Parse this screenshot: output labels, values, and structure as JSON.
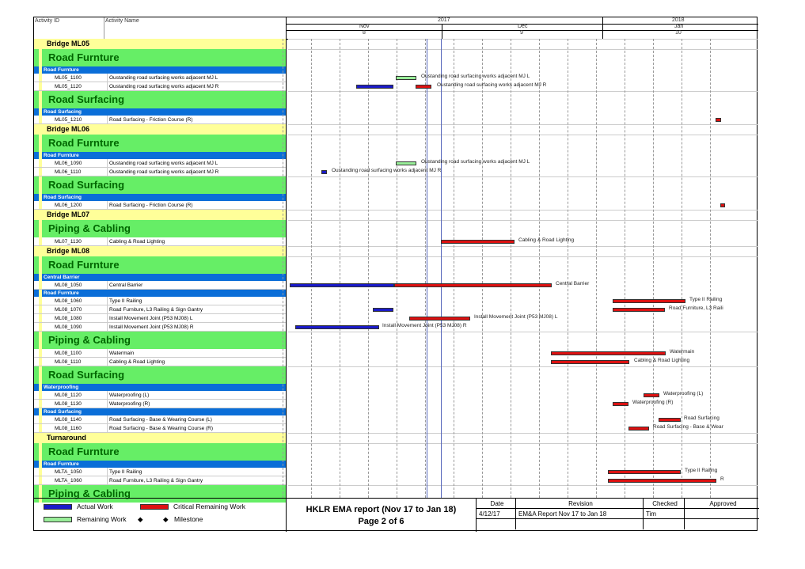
{
  "header": {
    "activity_id": "Activity ID",
    "activity_name": "Activity Name",
    "year_2017": "2017",
    "year_2018": "2018",
    "months": [
      "Nov",
      "Dec",
      "Jan"
    ],
    "month_nums": [
      "8",
      "9",
      "10"
    ]
  },
  "rows": [
    {
      "kind": "bridge",
      "label": "Bridge ML05"
    },
    {
      "kind": "cat",
      "label": "Road Furnture"
    },
    {
      "kind": "sub",
      "label": "Road Furnture"
    },
    {
      "kind": "act",
      "id": "ML05_1100",
      "name": "Oustanding road surfacing works adjacent MJ L"
    },
    {
      "kind": "act",
      "id": "ML05_1120",
      "name": "Oustanding road surfacing works adjacent MJ R"
    },
    {
      "kind": "cat",
      "label": "Road Surfacing"
    },
    {
      "kind": "sub",
      "label": "Road Surfacing"
    },
    {
      "kind": "act",
      "id": "ML05_1210",
      "name": "Road Surfacing - Friction Course (R)"
    },
    {
      "kind": "bridge",
      "label": "Bridge ML06"
    },
    {
      "kind": "cat",
      "label": "Road Furnture"
    },
    {
      "kind": "sub",
      "label": "Road Furnture"
    },
    {
      "kind": "act",
      "id": "ML06_1090",
      "name": "Oustanding road surfacing works adjacent MJ L"
    },
    {
      "kind": "act",
      "id": "ML06_1110",
      "name": "Oustanding road surfacing works adjacent MJ R"
    },
    {
      "kind": "cat",
      "label": "Road Surfacing"
    },
    {
      "kind": "sub",
      "label": "Road Surfacing"
    },
    {
      "kind": "act",
      "id": "ML06_1200",
      "name": "Road Surfacing - Friction Course (R)"
    },
    {
      "kind": "bridge",
      "label": "Bridge ML07"
    },
    {
      "kind": "cat",
      "label": "Piping & Cabling"
    },
    {
      "kind": "act",
      "id": "ML07_1130",
      "name": "Cabling & Road Lighting"
    },
    {
      "kind": "bridge",
      "label": "Bridge ML08"
    },
    {
      "kind": "cat",
      "label": "Road Furnture"
    },
    {
      "kind": "sub",
      "label": "Central Barrier"
    },
    {
      "kind": "act",
      "id": "ML08_1050",
      "name": "Central Barrier"
    },
    {
      "kind": "sub",
      "label": "Road Furnture"
    },
    {
      "kind": "act",
      "id": "ML08_1060",
      "name": "Type II Railing"
    },
    {
      "kind": "act",
      "id": "ML08_1070",
      "name": "Road Furniture, L3 Railing & Sign Gantry"
    },
    {
      "kind": "act",
      "id": "ML08_1080",
      "name": "Install Movement Joint (P53 MJ08) L"
    },
    {
      "kind": "act",
      "id": "ML08_1090",
      "name": "Install Movement Joint (P53 MJ08) R"
    },
    {
      "kind": "cat",
      "label": "Piping & Cabling"
    },
    {
      "kind": "act",
      "id": "ML08_1100",
      "name": "Watermain"
    },
    {
      "kind": "act",
      "id": "ML08_1110",
      "name": "Cabling & Road Lighting"
    },
    {
      "kind": "cat",
      "label": "Road Surfacing"
    },
    {
      "kind": "sub",
      "label": "Waterproofing"
    },
    {
      "kind": "act",
      "id": "ML08_1120",
      "name": "Waterproofing (L)"
    },
    {
      "kind": "act",
      "id": "ML08_1130",
      "name": "Waterproofing (R)"
    },
    {
      "kind": "sub",
      "label": "Road Surfacing"
    },
    {
      "kind": "act",
      "id": "ML08_1140",
      "name": "Road Surfacing - Base & Wearing Course (L)"
    },
    {
      "kind": "act",
      "id": "ML08_1160",
      "name": "Road Surfacing - Base & Wearing Course (R)"
    },
    {
      "kind": "bridge",
      "label": "Turnaround"
    },
    {
      "kind": "cat",
      "label": "Road Furnture"
    },
    {
      "kind": "sub",
      "label": "Road Furnture"
    },
    {
      "kind": "act",
      "id": "MLTA_1050",
      "name": "Type II Railing"
    },
    {
      "kind": "act",
      "id": "MLTA_1060",
      "name": "Road Furniture, L3 Railing & Sign Gantry"
    },
    {
      "kind": "cat",
      "label": "Piping & Cabling"
    }
  ],
  "bar_labels": {
    "ML05_1100": "Oustanding road surfacing works adjacent MJ L",
    "ML05_1120": "Oustanding road surfacing works adjacent MJ R",
    "ML06_1090": "Oustanding road surfacing works adjacent MJ L",
    "ML06_1110": "Oustanding road surfacing works adjacent MJ R",
    "ML07_1130": "Cabling & Road Lighting",
    "ML08_1050": "Central Barrier",
    "ML08_1060": "Type II Railing",
    "ML08_1070": "Road Furniture, L3 Raili",
    "ML08_1080": "Install Movement Joint (P53 MJ08) L",
    "ML08_1090": "Install Movement Joint (P53 MJ08) R",
    "ML08_1100": "Watermain",
    "ML08_1110": "Cabling & Road Lighting",
    "ML08_1120": "Waterproofing (L)",
    "ML08_1130": "Waterproofing (R)",
    "ML08_1140": "Road Surfacing",
    "ML08_1160": "Road Surfacing - Base & Wear",
    "MLTA_1050": "Type II Railing",
    "MLTA_1060": "R"
  },
  "legend": {
    "actual": "Actual Work",
    "critical": "Critical Remaining Work",
    "remaining": "Remaining Work",
    "milestone": "Milestone",
    "diamond": "◆"
  },
  "title": {
    "line1": "HKLR EMA report (Nov 17 to Jan 18)",
    "line2": "Page 2 of 6"
  },
  "revision": {
    "headers": [
      "Date",
      "Revision",
      "Checked",
      "Approved"
    ],
    "row": [
      "4/12/17",
      "EM&A Report Nov 17 to Jan 18",
      "Tim",
      ""
    ]
  },
  "colors": {
    "actual": "#1a1ac8",
    "critical": "#dd1111",
    "remaining": "#99ee99",
    "category": "#66ee66",
    "bridge": "#ffff99",
    "sub": "#0a6ed8"
  }
}
